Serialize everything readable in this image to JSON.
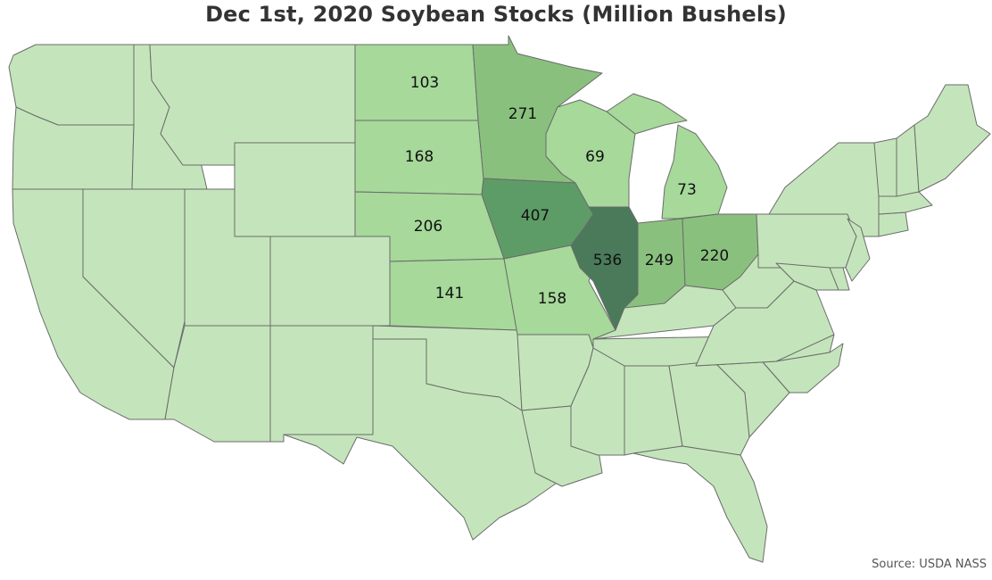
{
  "title": "Dec 1st, 2020 Soybean Stocks (Million Bushels)",
  "source": "Source: USDA NASS",
  "colors": {
    "base": "#c4e5bb",
    "scale": [
      "#c4e5bb",
      "#a6d99a",
      "#8ac07e",
      "#5e9c67",
      "#4a7a5a"
    ],
    "border": "#6b6b6b"
  },
  "chart_data": {
    "type": "choropleth",
    "measure": "Soybean stocks, Dec 1st 2020",
    "unit": "Million Bushels",
    "values": {
      "ND": 103,
      "MN": 271,
      "SD": 168,
      "WI": 69,
      "MI": 73,
      "NE": 206,
      "IA": 407,
      "IL": 536,
      "IN": 249,
      "OH": 220,
      "KS": 141,
      "MO": 158
    }
  }
}
